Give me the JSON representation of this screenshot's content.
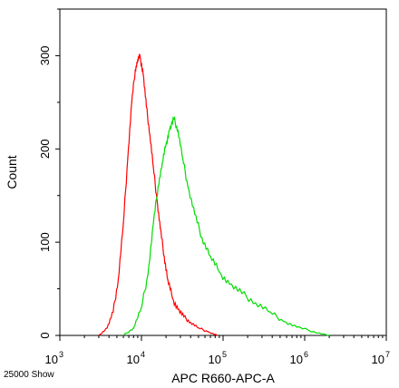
{
  "chart_data": {
    "type": "area",
    "title": "",
    "xlabel": "APC R660-APC-A",
    "ylabel": "Count",
    "x_scale": "log",
    "xlim": [
      1000,
      10000000
    ],
    "ylim": [
      0,
      350
    ],
    "x_ticks": [
      {
        "base": "10",
        "exp": "3",
        "value": 1000
      },
      {
        "base": "10",
        "exp": "4",
        "value": 10000
      },
      {
        "base": "10",
        "exp": "5",
        "value": 100000
      },
      {
        "base": "10",
        "exp": "6",
        "value": 1000000
      },
      {
        "base": "10",
        "exp": "7",
        "value": 10000000
      }
    ],
    "y_ticks": [
      0,
      100,
      200,
      300
    ],
    "footer": "25000 Show",
    "grid": false,
    "series": [
      {
        "color": "#ff0000",
        "points": [
          [
            3000,
            0
          ],
          [
            3800,
            8
          ],
          [
            4500,
            25
          ],
          [
            5200,
            60
          ],
          [
            6000,
            120
          ],
          [
            6800,
            190
          ],
          [
            7600,
            250
          ],
          [
            8400,
            285
          ],
          [
            9000,
            295
          ],
          [
            9600,
            300
          ],
          [
            10500,
            280
          ],
          [
            11500,
            245
          ],
          [
            12700,
            215
          ],
          [
            14000,
            180
          ],
          [
            15500,
            145
          ],
          [
            17000,
            115
          ],
          [
            19000,
            85
          ],
          [
            21000,
            60
          ],
          [
            24000,
            40
          ],
          [
            28000,
            28
          ],
          [
            33000,
            20
          ],
          [
            40000,
            14
          ],
          [
            50000,
            8
          ],
          [
            65000,
            4
          ],
          [
            85000,
            0
          ]
        ]
      },
      {
        "color": "#00dd00",
        "points": [
          [
            6000,
            0
          ],
          [
            8000,
            8
          ],
          [
            10000,
            30
          ],
          [
            12000,
            65
          ],
          [
            14000,
            120
          ],
          [
            16000,
            160
          ],
          [
            18000,
            185
          ],
          [
            20000,
            205
          ],
          [
            22000,
            220
          ],
          [
            25000,
            232
          ],
          [
            28000,
            220
          ],
          [
            32000,
            190
          ],
          [
            37000,
            160
          ],
          [
            45000,
            130
          ],
          [
            55000,
            105
          ],
          [
            70000,
            85
          ],
          [
            90000,
            68
          ],
          [
            120000,
            55
          ],
          [
            170000,
            45
          ],
          [
            250000,
            35
          ],
          [
            380000,
            25
          ],
          [
            550000,
            15
          ],
          [
            800000,
            9
          ],
          [
            1300000,
            4
          ],
          [
            2000000,
            0
          ]
        ]
      }
    ]
  }
}
